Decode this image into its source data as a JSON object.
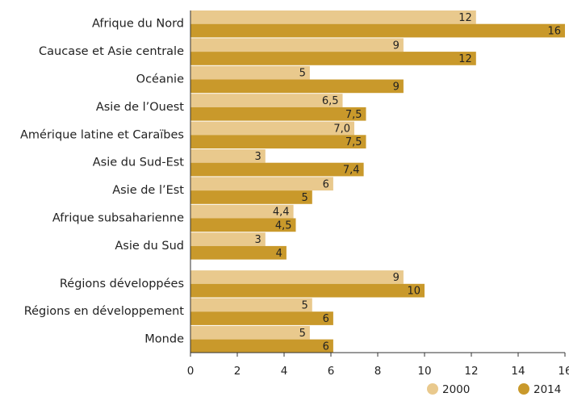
{
  "chart_data": {
    "type": "bar",
    "orientation": "horizontal",
    "categories": [
      "Afrique du Nord",
      "Caucase et Asie centrale",
      "Océanie",
      "Asie de l’Ouest",
      "Amérique latine et Caraïbes",
      "Asie du Sud-Est",
      "Asie de l’Est",
      "Afrique subsaharienne",
      "Asie du Sud",
      "Régions développées",
      "Régions en développement",
      "Monde"
    ],
    "series": [
      {
        "name": "2000",
        "color": "#e9c98d",
        "values": [
          12.2,
          9.1,
          5.1,
          6.5,
          7.0,
          3.2,
          6.1,
          4.4,
          3.2,
          9.1,
          5.2,
          5.1
        ],
        "value_labels": [
          "12",
          "9",
          "5",
          "6,5",
          "7,0",
          "3",
          "6",
          "4,4",
          "3",
          "9",
          "5",
          "5"
        ]
      },
      {
        "name": "2014",
        "color": "#c9992b",
        "values": [
          16,
          12.2,
          9.1,
          7.5,
          7.5,
          7.4,
          5.2,
          4.5,
          4.1,
          10,
          6.1,
          6.1
        ],
        "value_labels": [
          "16",
          "12",
          "9",
          "7,5",
          "7,5",
          "7,4",
          "5",
          "4,5",
          "4",
          "10",
          "6",
          "6"
        ]
      }
    ],
    "xlim": [
      0,
      16
    ],
    "xticks": [
      0,
      2,
      4,
      6,
      8,
      10,
      12,
      14,
      16
    ],
    "legend": "bottom-right"
  }
}
